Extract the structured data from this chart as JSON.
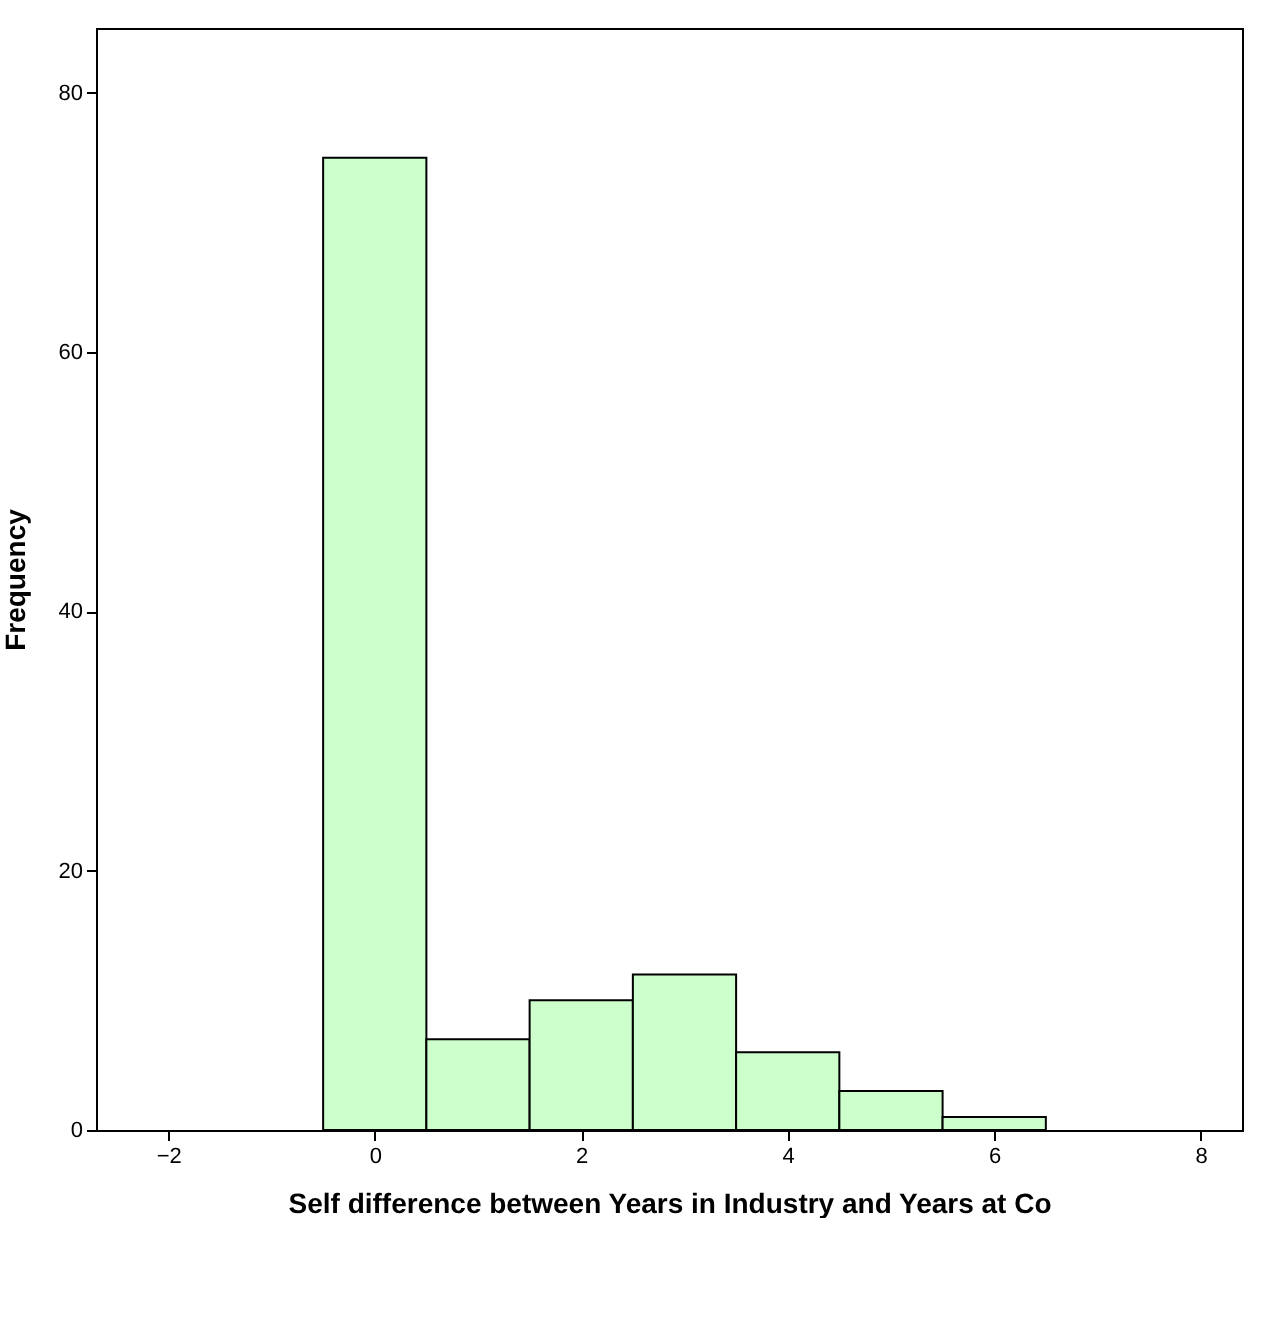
{
  "chart_data": {
    "type": "histogram",
    "xlabel": "Self difference between Years in Industry and Years at Co",
    "ylabel": "Frequency",
    "bins": [
      -0.5,
      0.5,
      1.5,
      2.5,
      3.5,
      4.5,
      5.5,
      6.5
    ],
    "values": [
      75,
      7,
      10,
      12,
      6,
      3,
      1
    ],
    "color": "#ccffcc",
    "xlim": [
      -2.7,
      8.4
    ],
    "xticks": [
      -2,
      0,
      2,
      4,
      6,
      8
    ],
    "ylim": [
      0,
      85
    ],
    "yticks": [
      0,
      20,
      40,
      60,
      80
    ],
    "grid": false
  }
}
